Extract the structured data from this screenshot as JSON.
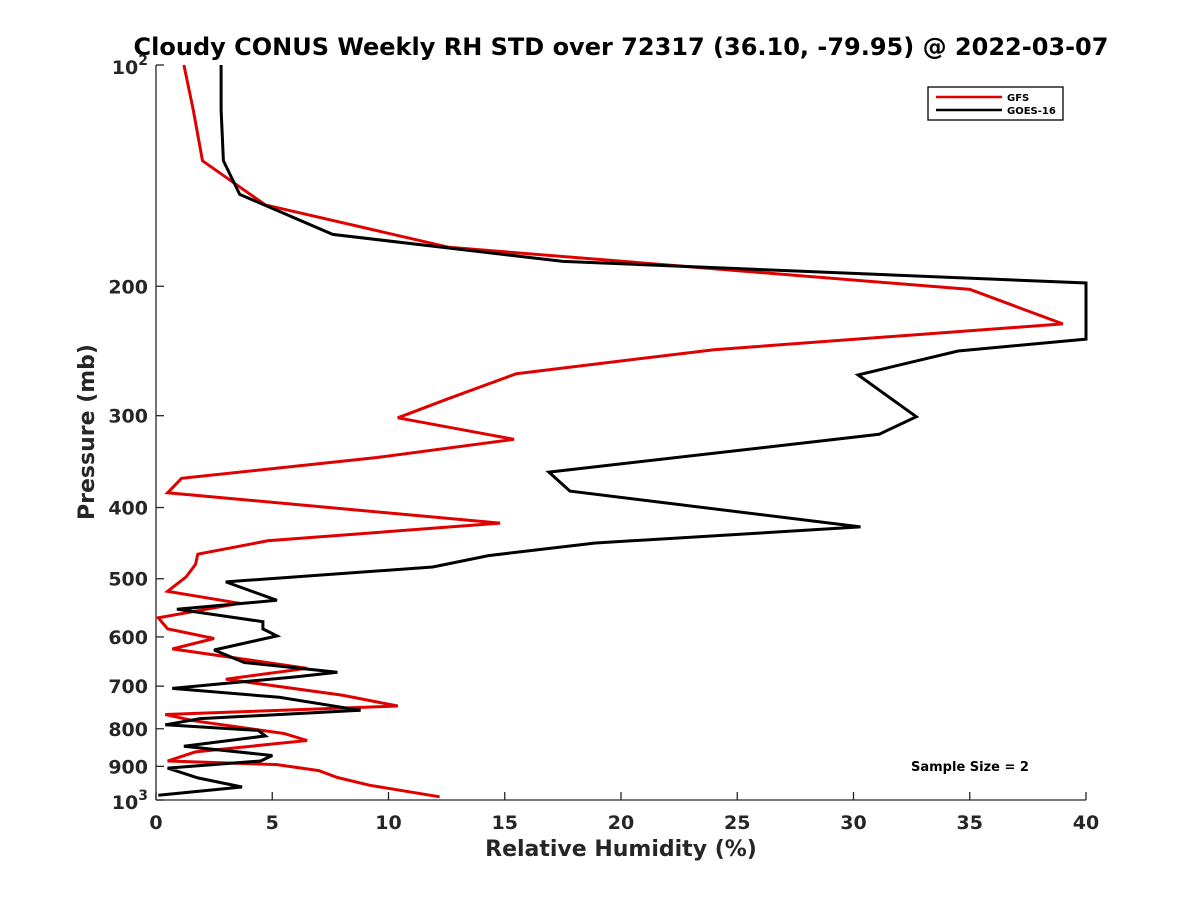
{
  "chart_data": {
    "type": "line",
    "title": "Cloudy CONUS Weekly RH STD over 72317 (36.10, -79.95) @ 2022-03-07",
    "xlabel": "Relative Humidity (%)",
    "ylabel": "Pressure (mb)",
    "xlim": [
      0,
      40
    ],
    "ylim": [
      100,
      1000
    ],
    "yscale": "log",
    "y_reversed": true,
    "grid": false,
    "legend_position": "top-right",
    "x_ticks": [
      "0",
      "5",
      "10",
      "15",
      "20",
      "25",
      "30",
      "35",
      "40"
    ],
    "y_ticks": [
      {
        "value": 100,
        "base": "10",
        "exp": "2"
      },
      {
        "value": 200,
        "label": "200"
      },
      {
        "value": 300,
        "label": "300"
      },
      {
        "value": 400,
        "label": "400"
      },
      {
        "value": 500,
        "label": "500"
      },
      {
        "value": 600,
        "label": "600"
      },
      {
        "value": 700,
        "label": "700"
      },
      {
        "value": 800,
        "label": "800"
      },
      {
        "value": 900,
        "label": "900"
      },
      {
        "value": 1000,
        "base": "10",
        "exp": "3"
      }
    ],
    "annotation": "Sample Size = 2",
    "series": [
      {
        "name": "GFS",
        "color": "#e00000",
        "points": [
          [
            1.2,
            100
          ],
          [
            1.6,
            115
          ],
          [
            2.0,
            135
          ],
          [
            4.7,
            155
          ],
          [
            12.6,
            177
          ],
          [
            35.0,
            202
          ],
          [
            39.0,
            225
          ],
          [
            24.0,
            244
          ],
          [
            15.5,
            263
          ],
          [
            12.5,
            285
          ],
          [
            10.4,
            302
          ],
          [
            15.4,
            323
          ],
          [
            9.5,
            342
          ],
          [
            1.1,
            365
          ],
          [
            0.5,
            382
          ],
          [
            14.8,
            420
          ],
          [
            4.8,
            444
          ],
          [
            1.8,
            463
          ],
          [
            1.7,
            478
          ],
          [
            1.3,
            497
          ],
          [
            0.5,
            520
          ],
          [
            3.6,
            540
          ],
          [
            0.1,
            565
          ],
          [
            0.5,
            585
          ],
          [
            2.5,
            603
          ],
          [
            0.7,
            623
          ],
          [
            6.5,
            662
          ],
          [
            3.0,
            685
          ],
          [
            8.0,
            720
          ],
          [
            10.4,
            745
          ],
          [
            0.4,
            765
          ],
          [
            1.6,
            780
          ],
          [
            5.5,
            812
          ],
          [
            6.5,
            830
          ],
          [
            1.7,
            860
          ],
          [
            0.5,
            885
          ],
          [
            5.2,
            895
          ],
          [
            7.0,
            912
          ],
          [
            7.8,
            932
          ],
          [
            9.2,
            955
          ],
          [
            12.2,
            990
          ]
        ]
      },
      {
        "name": "GOES-16",
        "color": "#000000",
        "points": [
          [
            2.8,
            100
          ],
          [
            2.8,
            115
          ],
          [
            2.9,
            135
          ],
          [
            3.6,
            150
          ],
          [
            7.6,
            170
          ],
          [
            17.5,
            185
          ],
          [
            40.0,
            198
          ],
          [
            40.0,
            236
          ],
          [
            34.5,
            245
          ],
          [
            30.2,
            264
          ],
          [
            32.7,
            301
          ],
          [
            31.1,
            318
          ],
          [
            16.9,
            358
          ],
          [
            17.8,
            380
          ],
          [
            30.3,
            425
          ],
          [
            18.9,
            447
          ],
          [
            14.3,
            465
          ],
          [
            11.9,
            482
          ],
          [
            3.0,
            505
          ],
          [
            5.2,
            535
          ],
          [
            0.9,
            550
          ],
          [
            4.6,
            572
          ],
          [
            4.6,
            585
          ],
          [
            5.2,
            598
          ],
          [
            2.5,
            625
          ],
          [
            3.8,
            650
          ],
          [
            7.8,
            670
          ],
          [
            6.0,
            680
          ],
          [
            0.7,
            705
          ],
          [
            5.3,
            725
          ],
          [
            8.8,
            755
          ],
          [
            1.9,
            775
          ],
          [
            0.4,
            790
          ],
          [
            4.4,
            804
          ],
          [
            4.7,
            818
          ],
          [
            1.2,
            845
          ],
          [
            5.0,
            870
          ],
          [
            4.5,
            885
          ],
          [
            0.5,
            905
          ],
          [
            1.8,
            933
          ],
          [
            3.7,
            960
          ],
          [
            0.1,
            985
          ]
        ]
      }
    ]
  }
}
